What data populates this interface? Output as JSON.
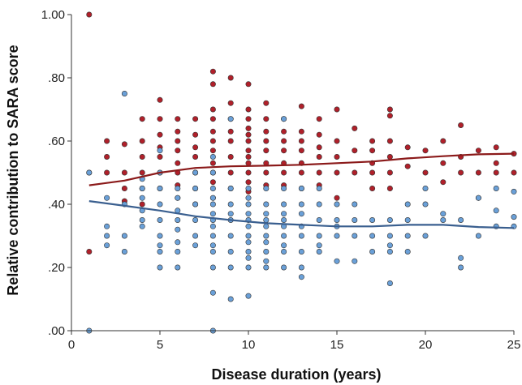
{
  "chart_data": {
    "type": "scatter",
    "xlabel": "Disease duration (years)",
    "ylabel": "Relative contribution to SARA score",
    "xlim": [
      0,
      25
    ],
    "ylim": [
      0,
      1
    ],
    "x_ticks": [
      0,
      5,
      10,
      15,
      20,
      25
    ],
    "x_tick_labels": [
      "0",
      "5",
      "10",
      "15",
      "20",
      "25"
    ],
    "y_ticks": [
      0,
      0.2,
      0.4,
      0.6,
      0.8,
      1.0
    ],
    "y_tick_labels": [
      ".00",
      ".20",
      ".40",
      ".60",
      ".80",
      "1.00"
    ],
    "grid": false,
    "series": [
      {
        "color": "#b0202a",
        "points": [
          [
            1,
            1.0
          ],
          [
            1,
            0.25
          ],
          [
            1,
            0.5
          ],
          [
            2,
            0.6
          ],
          [
            2,
            0.55
          ],
          [
            2,
            0.5
          ],
          [
            3,
            0.59
          ],
          [
            3,
            0.5
          ],
          [
            3,
            0.45
          ],
          [
            3,
            0.41
          ],
          [
            4,
            0.67
          ],
          [
            4,
            0.6
          ],
          [
            4,
            0.55
          ],
          [
            4,
            0.5
          ],
          [
            4,
            0.45
          ],
          [
            4,
            0.4
          ],
          [
            5,
            0.73
          ],
          [
            5,
            0.67
          ],
          [
            5,
            0.62
          ],
          [
            5,
            0.58
          ],
          [
            5,
            0.55
          ],
          [
            5,
            0.5
          ],
          [
            5,
            0.45
          ],
          [
            6,
            0.67
          ],
          [
            6,
            0.63
          ],
          [
            6,
            0.6
          ],
          [
            6,
            0.57
          ],
          [
            6,
            0.53
          ],
          [
            6,
            0.5
          ],
          [
            6,
            0.46
          ],
          [
            6,
            0.42
          ],
          [
            7,
            0.67
          ],
          [
            7,
            0.62
          ],
          [
            7,
            0.58
          ],
          [
            7,
            0.55
          ],
          [
            7,
            0.5
          ],
          [
            7,
            0.45
          ],
          [
            7,
            0.4
          ],
          [
            8,
            0.82
          ],
          [
            8,
            0.78
          ],
          [
            8,
            0.7
          ],
          [
            8,
            0.67
          ],
          [
            8,
            0.63
          ],
          [
            8,
            0.6
          ],
          [
            8,
            0.57
          ],
          [
            8,
            0.53
          ],
          [
            8,
            0.5
          ],
          [
            8,
            0.47
          ],
          [
            8,
            0.42
          ],
          [
            9,
            0.8
          ],
          [
            9,
            0.72
          ],
          [
            9,
            0.67
          ],
          [
            9,
            0.63
          ],
          [
            9,
            0.6
          ],
          [
            9,
            0.55
          ],
          [
            9,
            0.5
          ],
          [
            9,
            0.45
          ],
          [
            10,
            0.78
          ],
          [
            10,
            0.7
          ],
          [
            10,
            0.67
          ],
          [
            10,
            0.64
          ],
          [
            10,
            0.62
          ],
          [
            10,
            0.6
          ],
          [
            10,
            0.57
          ],
          [
            10,
            0.55
          ],
          [
            10,
            0.53
          ],
          [
            10,
            0.5
          ],
          [
            10,
            0.47
          ],
          [
            10,
            0.44
          ],
          [
            11,
            0.72
          ],
          [
            11,
            0.67
          ],
          [
            11,
            0.63
          ],
          [
            11,
            0.6
          ],
          [
            11,
            0.57
          ],
          [
            11,
            0.53
          ],
          [
            11,
            0.5
          ],
          [
            11,
            0.46
          ],
          [
            12,
            0.67
          ],
          [
            12,
            0.63
          ],
          [
            12,
            0.6
          ],
          [
            12,
            0.57
          ],
          [
            12,
            0.53
          ],
          [
            12,
            0.5
          ],
          [
            12,
            0.46
          ],
          [
            13,
            0.71
          ],
          [
            13,
            0.63
          ],
          [
            13,
            0.6
          ],
          [
            13,
            0.57
          ],
          [
            13,
            0.53
          ],
          [
            13,
            0.5
          ],
          [
            13,
            0.45
          ],
          [
            14,
            0.67
          ],
          [
            14,
            0.62
          ],
          [
            14,
            0.58
          ],
          [
            14,
            0.55
          ],
          [
            14,
            0.5
          ],
          [
            14,
            0.46
          ],
          [
            15,
            0.7
          ],
          [
            15,
            0.6
          ],
          [
            15,
            0.55
          ],
          [
            15,
            0.5
          ],
          [
            15,
            0.42
          ],
          [
            16,
            0.64
          ],
          [
            16,
            0.57
          ],
          [
            16,
            0.5
          ],
          [
            17,
            0.6
          ],
          [
            17,
            0.57
          ],
          [
            17,
            0.53
          ],
          [
            17,
            0.5
          ],
          [
            17,
            0.45
          ],
          [
            18,
            0.7
          ],
          [
            18,
            0.68
          ],
          [
            18,
            0.6
          ],
          [
            18,
            0.55
          ],
          [
            18,
            0.5
          ],
          [
            18,
            0.45
          ],
          [
            19,
            0.58
          ],
          [
            19,
            0.52
          ],
          [
            20,
            0.57
          ],
          [
            20,
            0.5
          ],
          [
            21,
            0.6
          ],
          [
            21,
            0.53
          ],
          [
            21,
            0.47
          ],
          [
            22,
            0.65
          ],
          [
            22,
            0.55
          ],
          [
            22,
            0.5
          ],
          [
            23,
            0.57
          ],
          [
            23,
            0.5
          ],
          [
            23,
            0.42
          ],
          [
            24,
            0.58
          ],
          [
            24,
            0.53
          ],
          [
            24,
            0.5
          ],
          [
            25,
            0.56
          ],
          [
            25,
            0.5
          ]
        ]
      },
      {
        "color": "#6aa0d8",
        "points": [
          [
            1,
            0.0
          ],
          [
            1,
            0.5
          ],
          [
            2,
            0.42
          ],
          [
            2,
            0.33
          ],
          [
            2,
            0.3
          ],
          [
            2,
            0.27
          ],
          [
            3,
            0.75
          ],
          [
            3,
            0.4
          ],
          [
            3,
            0.3
          ],
          [
            3,
            0.25
          ],
          [
            4,
            0.48
          ],
          [
            4,
            0.45
          ],
          [
            4,
            0.42
          ],
          [
            4,
            0.38
          ],
          [
            4,
            0.35
          ],
          [
            4,
            0.33
          ],
          [
            5,
            0.57
          ],
          [
            5,
            0.5
          ],
          [
            5,
            0.45
          ],
          [
            5,
            0.4
          ],
          [
            5,
            0.35
          ],
          [
            5,
            0.3
          ],
          [
            5,
            0.27
          ],
          [
            5,
            0.25
          ],
          [
            5,
            0.2
          ],
          [
            6,
            0.45
          ],
          [
            6,
            0.42
          ],
          [
            6,
            0.38
          ],
          [
            6,
            0.35
          ],
          [
            6,
            0.32
          ],
          [
            6,
            0.28
          ],
          [
            6,
            0.25
          ],
          [
            6,
            0.2
          ],
          [
            7,
            0.5
          ],
          [
            7,
            0.45
          ],
          [
            7,
            0.4
          ],
          [
            7,
            0.35
          ],
          [
            7,
            0.3
          ],
          [
            7,
            0.27
          ],
          [
            8,
            0.55
          ],
          [
            8,
            0.5
          ],
          [
            8,
            0.45
          ],
          [
            8,
            0.42
          ],
          [
            8,
            0.4
          ],
          [
            8,
            0.37
          ],
          [
            8,
            0.35
          ],
          [
            8,
            0.33
          ],
          [
            8,
            0.3
          ],
          [
            8,
            0.27
          ],
          [
            8,
            0.25
          ],
          [
            8,
            0.2
          ],
          [
            8,
            0.12
          ],
          [
            8,
            0.0
          ],
          [
            9,
            0.67
          ],
          [
            9,
            0.45
          ],
          [
            9,
            0.4
          ],
          [
            9,
            0.37
          ],
          [
            9,
            0.35
          ],
          [
            9,
            0.3
          ],
          [
            9,
            0.25
          ],
          [
            9,
            0.2
          ],
          [
            9,
            0.1
          ],
          [
            10,
            0.45
          ],
          [
            10,
            0.42
          ],
          [
            10,
            0.4
          ],
          [
            10,
            0.37
          ],
          [
            10,
            0.35
          ],
          [
            10,
            0.33
          ],
          [
            10,
            0.3
          ],
          [
            10,
            0.28
          ],
          [
            10,
            0.25
          ],
          [
            10,
            0.23
          ],
          [
            10,
            0.2
          ],
          [
            10,
            0.11
          ],
          [
            11,
            0.45
          ],
          [
            11,
            0.4
          ],
          [
            11,
            0.37
          ],
          [
            11,
            0.35
          ],
          [
            11,
            0.33
          ],
          [
            11,
            0.3
          ],
          [
            11,
            0.28
          ],
          [
            11,
            0.25
          ],
          [
            11,
            0.22
          ],
          [
            11,
            0.2
          ],
          [
            12,
            0.67
          ],
          [
            12,
            0.45
          ],
          [
            12,
            0.4
          ],
          [
            12,
            0.37
          ],
          [
            12,
            0.35
          ],
          [
            12,
            0.33
          ],
          [
            12,
            0.3
          ],
          [
            12,
            0.27
          ],
          [
            12,
            0.25
          ],
          [
            12,
            0.2
          ],
          [
            13,
            0.45
          ],
          [
            13,
            0.4
          ],
          [
            13,
            0.37
          ],
          [
            13,
            0.33
          ],
          [
            13,
            0.3
          ],
          [
            13,
            0.25
          ],
          [
            13,
            0.2
          ],
          [
            13,
            0.17
          ],
          [
            14,
            0.45
          ],
          [
            14,
            0.4
          ],
          [
            14,
            0.35
          ],
          [
            14,
            0.3
          ],
          [
            14,
            0.27
          ],
          [
            14,
            0.25
          ],
          [
            15,
            0.4
          ],
          [
            15,
            0.35
          ],
          [
            15,
            0.33
          ],
          [
            15,
            0.3
          ],
          [
            15,
            0.22
          ],
          [
            16,
            0.4
          ],
          [
            16,
            0.35
          ],
          [
            16,
            0.3
          ],
          [
            16,
            0.22
          ],
          [
            17,
            0.35
          ],
          [
            17,
            0.3
          ],
          [
            17,
            0.25
          ],
          [
            18,
            0.35
          ],
          [
            18,
            0.3
          ],
          [
            18,
            0.27
          ],
          [
            18,
            0.25
          ],
          [
            18,
            0.15
          ],
          [
            19,
            0.4
          ],
          [
            19,
            0.35
          ],
          [
            19,
            0.3
          ],
          [
            19,
            0.25
          ],
          [
            20,
            0.45
          ],
          [
            20,
            0.4
          ],
          [
            20,
            0.3
          ],
          [
            21,
            0.37
          ],
          [
            21,
            0.35
          ],
          [
            22,
            0.35
          ],
          [
            22,
            0.23
          ],
          [
            22,
            0.2
          ],
          [
            23,
            0.42
          ],
          [
            23,
            0.3
          ],
          [
            24,
            0.45
          ],
          [
            24,
            0.38
          ],
          [
            24,
            0.33
          ],
          [
            25,
            0.44
          ],
          [
            25,
            0.36
          ],
          [
            25,
            0.33
          ]
        ]
      }
    ],
    "trend_lines": [
      {
        "color": "#8b1a1a",
        "x": [
          1,
          3,
          5,
          7,
          9,
          11,
          13,
          15,
          17,
          19,
          21,
          23,
          25
        ],
        "y": [
          0.46,
          0.475,
          0.5,
          0.515,
          0.52,
          0.522,
          0.525,
          0.53,
          0.535,
          0.545,
          0.552,
          0.558,
          0.56
        ]
      },
      {
        "color": "#3a5f8f",
        "x": [
          1,
          3,
          5,
          7,
          9,
          11,
          13,
          15,
          17,
          19,
          21,
          23,
          25
        ],
        "y": [
          0.41,
          0.395,
          0.38,
          0.362,
          0.35,
          0.34,
          0.335,
          0.33,
          0.33,
          0.335,
          0.335,
          0.328,
          0.325
        ]
      }
    ]
  }
}
